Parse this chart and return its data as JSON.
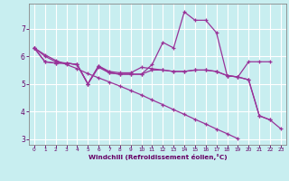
{
  "background_color": "#c8eef0",
  "grid_color": "#ffffff",
  "line_color": "#993399",
  "tick_color": "#660066",
  "xlabel": "Windchill (Refroidissement éolien,°C)",
  "xlabel_color": "#660066",
  "ylim": [
    2.8,
    7.9
  ],
  "xlim": [
    -0.5,
    23.5
  ],
  "yticks": [
    3,
    4,
    5,
    6,
    7
  ],
  "xticks": [
    0,
    1,
    2,
    3,
    4,
    5,
    6,
    7,
    8,
    9,
    10,
    11,
    12,
    13,
    14,
    15,
    16,
    17,
    18,
    19,
    20,
    21,
    22,
    23
  ],
  "series": [
    {
      "x": [
        0,
        1,
        2,
        3,
        4,
        5,
        6,
        7,
        8,
        9,
        10,
        11,
        12,
        13,
        14,
        15,
        16,
        17,
        18,
        19,
        20,
        21,
        22,
        23
      ],
      "y": [
        6.3,
        6.05,
        5.85,
        5.7,
        5.55,
        5.37,
        5.22,
        5.07,
        4.92,
        4.76,
        4.6,
        4.42,
        4.25,
        4.07,
        3.9,
        3.72,
        3.55,
        3.37,
        3.2,
        3.02,
        null,
        null,
        null,
        null
      ]
    },
    {
      "x": [
        0,
        1,
        2,
        3,
        4,
        5,
        6,
        7,
        8,
        9,
        10,
        11,
        12,
        13,
        14,
        15,
        16,
        17,
        18,
        19,
        20,
        21,
        22,
        23
      ],
      "y": [
        6.3,
        6.0,
        5.8,
        5.75,
        5.7,
        5.0,
        5.6,
        5.4,
        5.35,
        5.35,
        5.35,
        5.7,
        6.5,
        6.3,
        7.6,
        7.3,
        7.3,
        6.85,
        5.3,
        5.25,
        5.15,
        3.85,
        3.7,
        3.38
      ]
    },
    {
      "x": [
        0,
        1,
        2,
        3,
        4,
        5,
        6,
        7,
        8,
        9,
        10,
        11,
        12,
        13,
        14,
        15,
        16,
        17,
        18,
        19,
        20,
        21,
        22,
        23
      ],
      "y": [
        6.3,
        5.8,
        5.75,
        5.75,
        5.7,
        5.0,
        5.65,
        5.4,
        5.35,
        5.35,
        5.35,
        5.5,
        5.5,
        5.45,
        5.45,
        5.5,
        5.5,
        5.45,
        5.3,
        5.25,
        5.8,
        5.8,
        5.8,
        null
      ]
    },
    {
      "x": [
        0,
        1,
        2,
        3,
        4,
        5,
        6,
        7,
        8,
        9,
        10,
        11,
        12,
        13,
        14,
        15,
        16,
        17,
        18,
        19,
        20,
        21,
        22,
        23
      ],
      "y": [
        6.3,
        5.8,
        5.75,
        5.75,
        5.7,
        5.0,
        5.65,
        5.45,
        5.4,
        5.4,
        5.6,
        5.55,
        5.5,
        5.45,
        5.45,
        5.5,
        5.5,
        5.45,
        5.3,
        5.25,
        5.15,
        3.85,
        3.7,
        null
      ]
    }
  ]
}
